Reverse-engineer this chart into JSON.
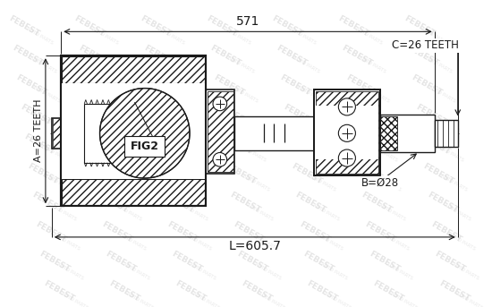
{
  "bg_color": "#ffffff",
  "line_color": "#1a1a1a",
  "watermark_color": "#d0d0d0",
  "dim_571": "571",
  "dim_L": "L=605.7",
  "dim_A": "A=26 TEETH",
  "dim_B": "B=Ø28",
  "dim_C": "C=26 TEETH",
  "label_fig2": "FIG2",
  "fig_width": 5.5,
  "fig_height": 3.43,
  "dpi": 100
}
